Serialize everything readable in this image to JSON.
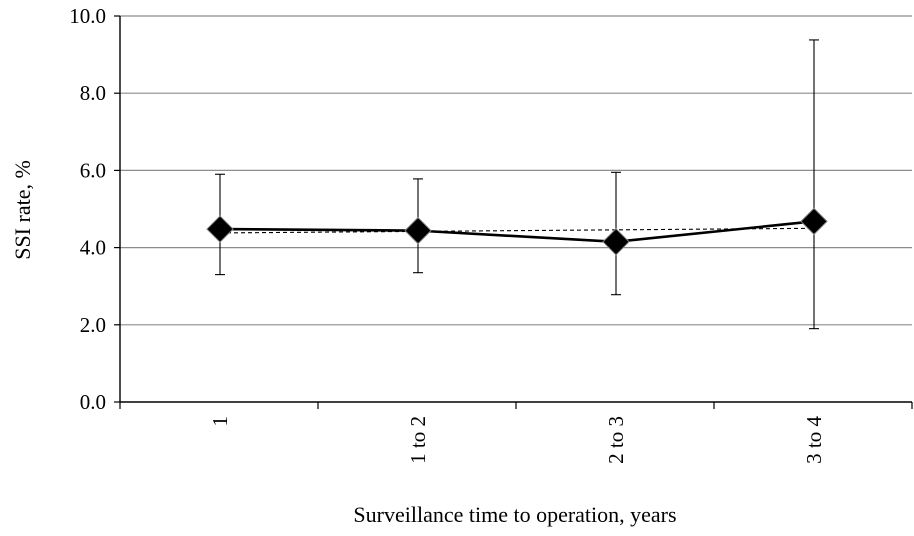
{
  "chart_data": {
    "type": "line",
    "title": "",
    "xlabel": "Surveillance time to operation, years",
    "ylabel": "SSI rate, %",
    "categories": [
      "1",
      "1 to 2",
      "2 to 3",
      "3 to 4"
    ],
    "ylim": [
      0,
      10
    ],
    "y_ticks": [
      "0.0",
      "2.0",
      "4.0",
      "6.0",
      "8.0",
      "10.0"
    ],
    "y_tick_values": [
      0,
      2,
      4,
      6,
      8,
      10
    ],
    "grid": true,
    "legend": "none",
    "series": [
      {
        "values": [
          4.48,
          4.44,
          4.15,
          4.68
        ],
        "error_low": [
          3.3,
          3.35,
          2.78,
          1.9
        ],
        "error_high": [
          5.9,
          5.78,
          5.95,
          9.38
        ],
        "marker": "diamond",
        "color": "#000000"
      }
    ],
    "trendline": {
      "style": "dashed",
      "start": 4.38,
      "end": 4.5,
      "color": "#000000"
    }
  }
}
